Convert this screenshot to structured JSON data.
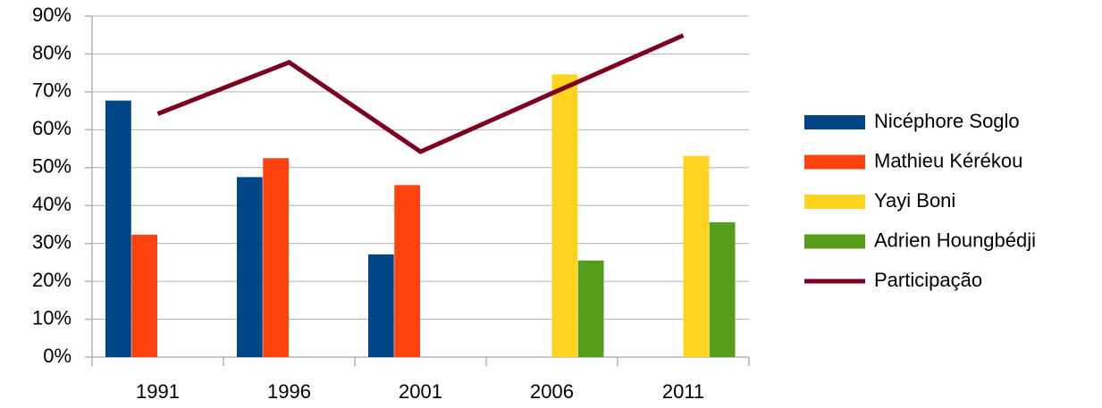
{
  "chart_data": {
    "type": "bar",
    "categories": [
      "1991",
      "1996",
      "2001",
      "2006",
      "2011"
    ],
    "series": [
      {
        "name": "Nicéphore Soglo",
        "color": "#004586",
        "values": [
          67.7,
          47.5,
          27.1,
          null,
          null
        ]
      },
      {
        "name": "Mathieu Kérékou",
        "color": "#ff420e",
        "values": [
          32.3,
          52.5,
          45.4,
          null,
          null
        ]
      },
      {
        "name": "Yayi Boni",
        "color": "#ffd320",
        "values": [
          null,
          null,
          null,
          74.6,
          53.1
        ]
      },
      {
        "name": "Adrien Houngbédji",
        "color": "#579d1c",
        "values": [
          null,
          null,
          null,
          25.5,
          35.6
        ]
      },
      {
        "name": "Participação",
        "color": "#7e0021",
        "type": "line",
        "values": [
          64.2,
          77.8,
          54.2,
          69.6,
          84.9
        ]
      }
    ],
    "ylim": [
      0,
      90
    ],
    "yticks": [
      {
        "value": 0,
        "label": "0%"
      },
      {
        "value": 10,
        "label": "10%"
      },
      {
        "value": 20,
        "label": "20%"
      },
      {
        "value": 30,
        "label": "30%"
      },
      {
        "value": 40,
        "label": "40%"
      },
      {
        "value": 50,
        "label": "50%"
      },
      {
        "value": 60,
        "label": "60%"
      },
      {
        "value": 70,
        "label": "70%"
      },
      {
        "value": 80,
        "label": "80%"
      },
      {
        "value": 90,
        "label": "90%"
      }
    ],
    "grid": true,
    "legend": "right"
  }
}
